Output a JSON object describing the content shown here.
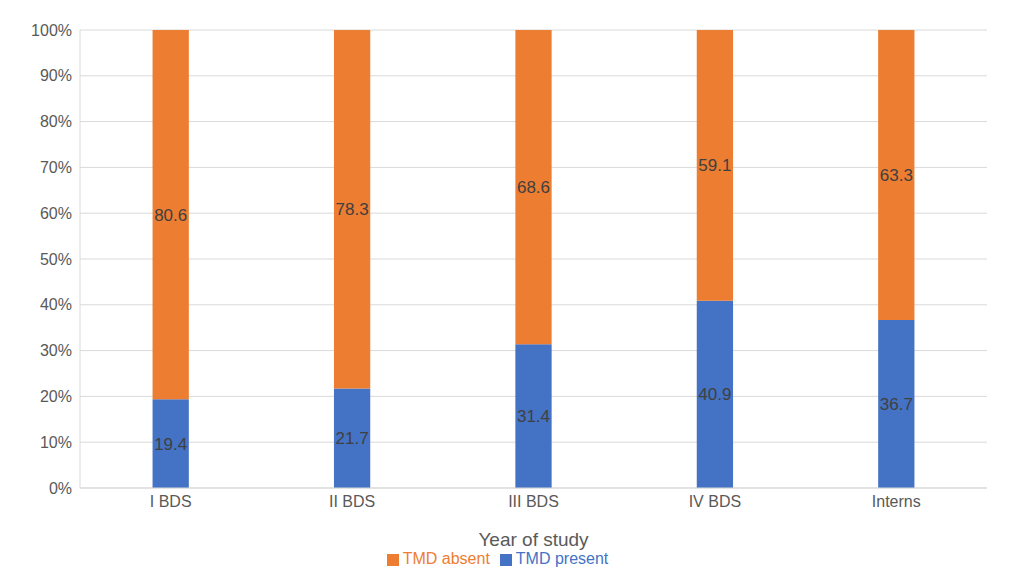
{
  "chart_data": {
    "type": "bar",
    "categories": [
      "I BDS",
      "II BDS",
      "III BDS",
      "IV BDS",
      "Interns"
    ],
    "series": [
      {
        "name": "TMD present",
        "color": "#4472c4",
        "values": [
          19.4,
          21.7,
          31.4,
          40.9,
          36.7
        ]
      },
      {
        "name": "TMD absent",
        "color": "#ed7d31",
        "values": [
          80.6,
          78.3,
          68.6,
          59.1,
          63.3
        ]
      }
    ],
    "x_label": "Year of study",
    "ylim": [
      0,
      100
    ],
    "yticks": [
      {
        "value": 0,
        "label": "0%"
      },
      {
        "value": 10,
        "label": "10%"
      },
      {
        "value": 20,
        "label": "20%"
      },
      {
        "value": 30,
        "label": "30%"
      },
      {
        "value": 40,
        "label": "40%"
      },
      {
        "value": 50,
        "label": "50%"
      },
      {
        "value": 60,
        "label": "60%"
      },
      {
        "value": 70,
        "label": "70%"
      },
      {
        "value": 80,
        "label": "80%"
      },
      {
        "value": 90,
        "label": "90%"
      },
      {
        "value": 100,
        "label": "100%"
      }
    ],
    "stacked": true,
    "data_labels": true,
    "grid": true,
    "legend": "bottom"
  }
}
